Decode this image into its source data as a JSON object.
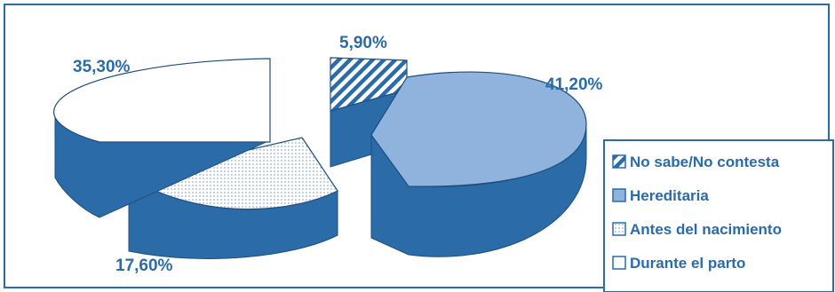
{
  "chart_data": {
    "type": "pie",
    "style": "3d-exploded",
    "slices": [
      {
        "label": "No sabe/No contesta",
        "value": 5.9,
        "display": "5,90%",
        "fill": "hatch",
        "color": "#2a6ba8"
      },
      {
        "label": "Hereditaria",
        "value": 41.2,
        "display": "41,20%",
        "fill": "solid",
        "color": "#8fb3dd"
      },
      {
        "label": "Antes del nacimiento",
        "value": 17.6,
        "display": "17,60%",
        "fill": "dots",
        "color": "#ffffff"
      },
      {
        "label": "Durante el parto",
        "value": 35.3,
        "display": "35,30%",
        "fill": "solid",
        "color": "#ffffff"
      }
    ],
    "side_color": "#2a6ba8",
    "legend_placement": "bottom-right"
  }
}
